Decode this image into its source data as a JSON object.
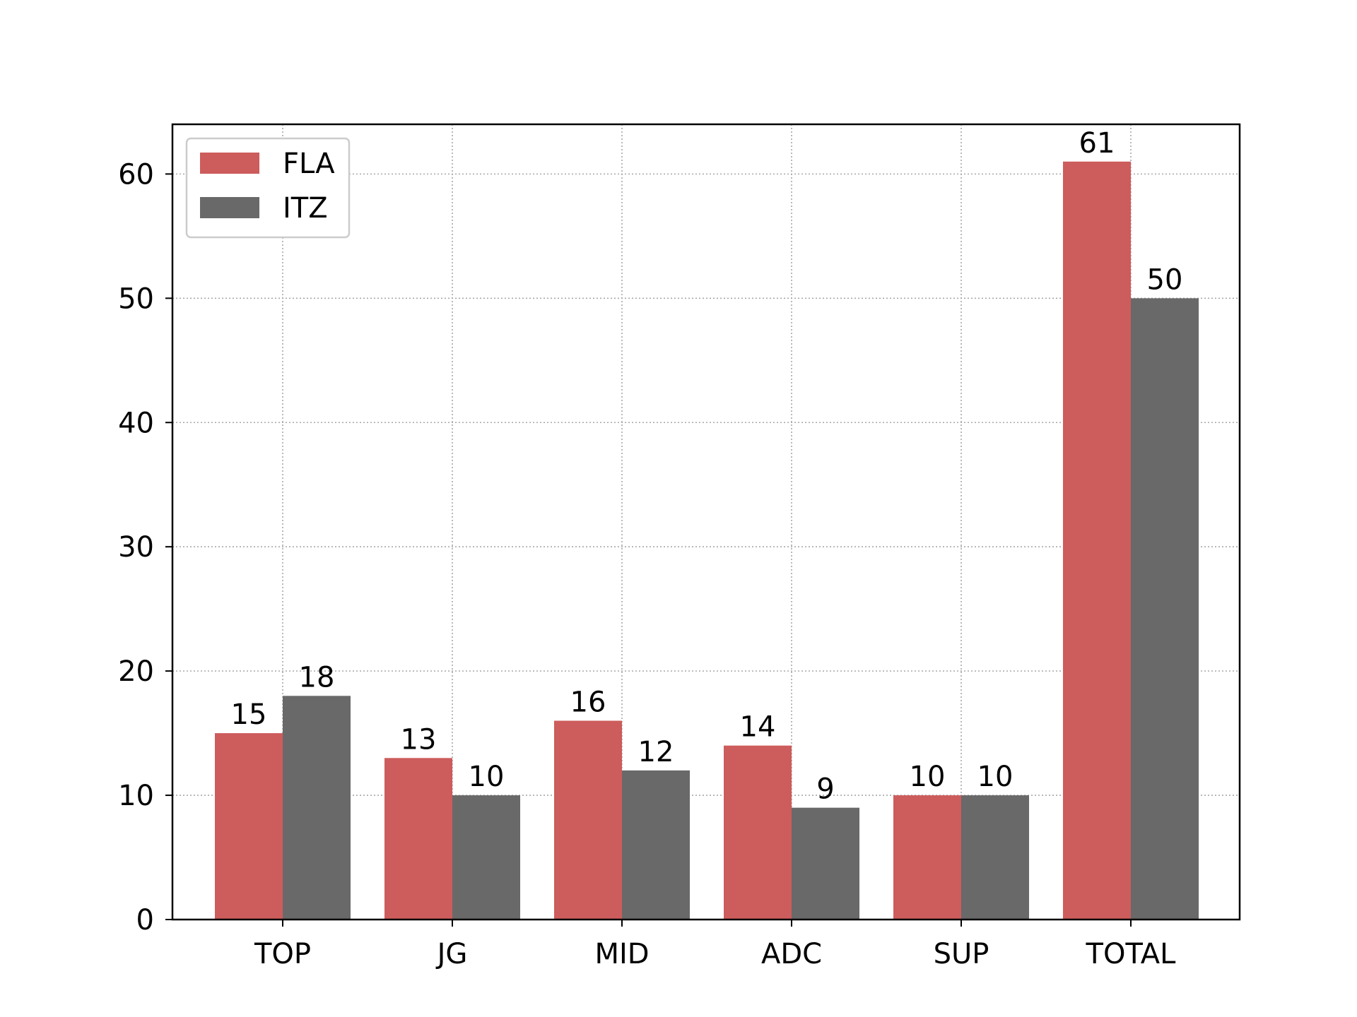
{
  "chart_data": {
    "type": "bar",
    "categories": [
      "TOP",
      "JG",
      "MID",
      "ADC",
      "SUP",
      "TOTAL"
    ],
    "series": [
      {
        "name": "FLA",
        "values": [
          15,
          13,
          16,
          14,
          10,
          61
        ],
        "color": "#cd5c5c"
      },
      {
        "name": "ITZ",
        "values": [
          18,
          10,
          12,
          9,
          10,
          50
        ],
        "color": "#696969"
      }
    ],
    "title": "",
    "xlabel": "",
    "ylabel": "",
    "ylim": [
      0,
      64
    ],
    "yticks": [
      0,
      10,
      20,
      30,
      40,
      50,
      60
    ],
    "grid": true,
    "legend_position": "top-left",
    "data_labels": true
  }
}
